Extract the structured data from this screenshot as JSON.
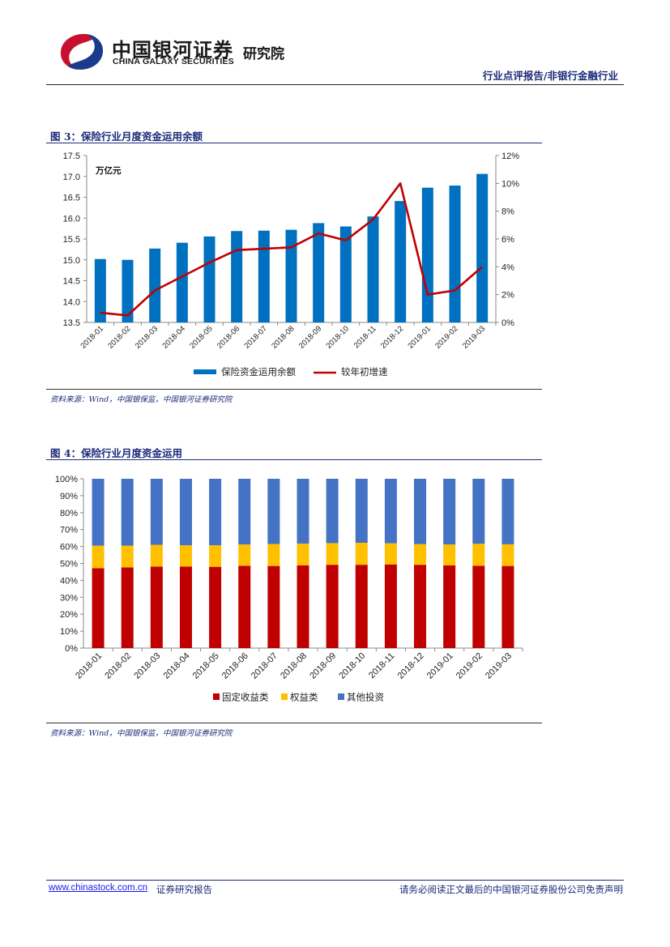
{
  "header": {
    "brand_cn": "中国银河证券",
    "brand_en": "CHINA GALAXY SECURITIES",
    "institute": "研究院",
    "report_type": "行业点评报告/非银行金融行业"
  },
  "figures": [
    {
      "title": "图 3：保险行业月度资金运用余额",
      "source": "资料来源：Wind，中国银保监，中国银河证券研究院"
    },
    {
      "title": "图 4：保险行业月度资金运用",
      "source": "资料来源：Wind，中国银保监，中国银河证券研究院"
    }
  ],
  "chart_data": [
    {
      "type": "bar",
      "title": "保险行业月度资金运用余额",
      "unit_label": "万亿元",
      "categories": [
        "2018-01",
        "2018-02",
        "2018-03",
        "2018-04",
        "2018-05",
        "2018-06",
        "2018-07",
        "2018-08",
        "2018-09",
        "2018-10",
        "2018-11",
        "2018-12",
        "2019-01",
        "2019-02",
        "2019-03"
      ],
      "series": [
        {
          "name": "保险资金运用余额",
          "kind": "bar",
          "axis": "left",
          "color": "#0070C0",
          "values": [
            15.02,
            15.0,
            15.27,
            15.41,
            15.56,
            15.69,
            15.7,
            15.72,
            15.88,
            15.8,
            16.04,
            16.41,
            16.73,
            16.78,
            17.06
          ]
        },
        {
          "name": "较年初增速",
          "kind": "line",
          "axis": "right",
          "color": "#C00000",
          "values": [
            0.7,
            0.5,
            2.3,
            3.3,
            4.3,
            5.2,
            5.3,
            5.4,
            6.4,
            5.9,
            7.4,
            10.0,
            2.0,
            2.3,
            4.0
          ]
        }
      ],
      "y_left": {
        "min": 13.5,
        "max": 17.5,
        "step": 0.5,
        "ticks": [
          "13.5",
          "14.0",
          "14.5",
          "15.0",
          "15.5",
          "16.0",
          "16.5",
          "17.0",
          "17.5"
        ]
      },
      "y_right": {
        "min": 0,
        "max": 12,
        "step": 2,
        "ticks": [
          "0%",
          "2%",
          "4%",
          "6%",
          "8%",
          "10%",
          "12%"
        ]
      },
      "legend_position": "bottom"
    },
    {
      "type": "bar",
      "stacked": true,
      "title": "保险行业月度资金运用",
      "categories": [
        "2018-01",
        "2018-02",
        "2018-03",
        "2018-04",
        "2018-05",
        "2018-06",
        "2018-07",
        "2018-08",
        "2018-09",
        "2018-10",
        "2018-11",
        "2018-12",
        "2019-01",
        "2019-02",
        "2019-03"
      ],
      "series": [
        {
          "name": "固定收益类",
          "color": "#C00000",
          "values": [
            47.2,
            47.6,
            48.1,
            48.2,
            48.0,
            48.6,
            48.5,
            48.8,
            49.2,
            49.2,
            49.4,
            49.2,
            48.8,
            48.6,
            48.5
          ]
        },
        {
          "name": "权益类",
          "color": "#FFC000",
          "values": [
            13.3,
            12.9,
            12.9,
            12.5,
            12.7,
            12.6,
            13.0,
            12.9,
            12.8,
            13.0,
            12.5,
            12.2,
            12.4,
            13.0,
            12.8
          ]
        },
        {
          "name": "其他投资",
          "color": "#4472C4",
          "values": [
            39.5,
            39.5,
            39.0,
            39.3,
            39.3,
            38.8,
            38.5,
            38.3,
            38.0,
            37.8,
            38.1,
            38.6,
            38.8,
            38.4,
            38.7
          ]
        }
      ],
      "y_axis": {
        "min": 0,
        "max": 100,
        "step": 10,
        "ticks": [
          "0%",
          "10%",
          "20%",
          "30%",
          "40%",
          "50%",
          "60%",
          "70%",
          "80%",
          "90%",
          "100%"
        ]
      },
      "legend_position": "bottom"
    }
  ],
  "footer": {
    "link": "www.chinastock.com.cn",
    "left_suffix": "证券研究报告",
    "right": "请务必阅读正文最后的中国银河证券股份公司免责声明"
  }
}
